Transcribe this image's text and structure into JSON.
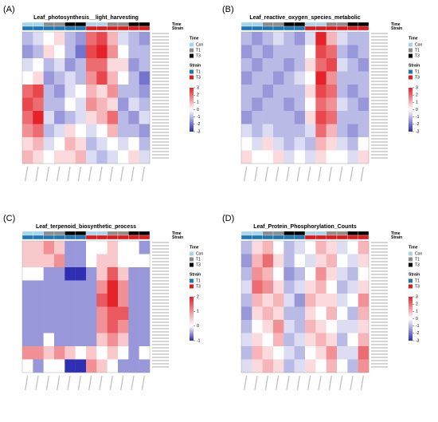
{
  "chart_data": [
    {
      "type": "heatmap",
      "label": "(A)",
      "title": "Leaf_photosynthesis__light_harvesting",
      "annotation_labels": [
        "Time",
        "Strain"
      ],
      "time_legend": {
        "title": "Time",
        "items": [
          "Con",
          "T1",
          "T3"
        ],
        "colors": [
          "#a6d4ec",
          "#8c8c8c",
          "#000000"
        ]
      },
      "strain_legend": {
        "title": "Strain",
        "items": [
          "T1",
          "T3"
        ],
        "colors": [
          "#1f78b4",
          "#e31a1c"
        ]
      },
      "columns": {
        "time": [
          "Con",
          "Con",
          "T1",
          "T1",
          "T3",
          "T3",
          "Con",
          "Con",
          "T1",
          "T1",
          "T3",
          "T3"
        ],
        "strain": [
          "T1",
          "T1",
          "T1",
          "T1",
          "T1",
          "T1",
          "T3",
          "T3",
          "T3",
          "T3",
          "T3",
          "T3"
        ]
      },
      "zlim": [
        -3,
        3
      ],
      "zticks": [
        3,
        2,
        1,
        0,
        -1,
        -2,
        -3
      ],
      "colors": [
        "#2f2fb4",
        "#ffffff",
        "#e3222a"
      ],
      "values": [
        [
          -1,
          -0.5,
          0,
          0.5,
          -1,
          -1.5,
          2,
          2.5,
          1,
          -0.5,
          -1,
          -1.5
        ],
        [
          -1.5,
          -1,
          0.5,
          0,
          -1,
          -2,
          2.5,
          3,
          1.5,
          0,
          -1,
          -1
        ],
        [
          -0.5,
          0,
          -1,
          -0.5,
          -1.5,
          -1,
          2,
          2,
          0.5,
          0.5,
          -1.5,
          -1
        ],
        [
          0,
          0.5,
          -1.5,
          -1,
          -0.5,
          -1,
          1.5,
          2.5,
          1,
          0,
          -1,
          -2
        ],
        [
          2,
          2.5,
          -1,
          -1.5,
          -0.5,
          0,
          1,
          0.5,
          1.5,
          -1,
          -1,
          -1.5
        ],
        [
          2.5,
          2,
          -1,
          -1,
          0,
          -0.5,
          1.5,
          1,
          0.5,
          -1.5,
          -0.5,
          -1
        ],
        [
          2,
          3,
          -0.5,
          -1.5,
          -1,
          -0.5,
          0.5,
          1,
          2,
          -1,
          -1.5,
          -0.5
        ],
        [
          1.5,
          2,
          -1,
          -0.5,
          0.5,
          0,
          -0.5,
          0,
          1,
          -1,
          -1,
          -1.5
        ],
        [
          0.5,
          1,
          -0.5,
          0,
          1,
          0.5,
          -1,
          -0.5,
          0,
          -0.5,
          0,
          -1
        ],
        [
          1,
          0.5,
          0,
          0.5,
          0.5,
          1,
          -0.5,
          -1,
          -0.5,
          0,
          0.5,
          -0.5
        ]
      ]
    },
    {
      "type": "heatmap",
      "label": "(B)",
      "title": "Leaf_reactive_oxygen_species_metabolic",
      "annotation_labels": [
        "Time",
        "Strain"
      ],
      "time_legend": {
        "title": "Time",
        "items": [
          "Con",
          "T1",
          "T3"
        ],
        "colors": [
          "#a6d4ec",
          "#8c8c8c",
          "#000000"
        ]
      },
      "strain_legend": {
        "title": "Strain",
        "items": [
          "T1",
          "T3"
        ],
        "colors": [
          "#1f78b4",
          "#e31a1c"
        ]
      },
      "columns": {
        "time": [
          "Con",
          "Con",
          "T1",
          "T1",
          "T3",
          "T3",
          "Con",
          "Con",
          "T1",
          "T1",
          "T3",
          "T3"
        ],
        "strain": [
          "T1",
          "T1",
          "T1",
          "T1",
          "T1",
          "T1",
          "T3",
          "T3",
          "T3",
          "T3",
          "T3",
          "T3"
        ]
      },
      "zlim": [
        -3,
        3
      ],
      "zticks": [
        3,
        2,
        1,
        0,
        -1,
        -2,
        -3
      ],
      "colors": [
        "#2f2fb4",
        "#ffffff",
        "#e3222a"
      ],
      "values": [
        [
          -1,
          -1.5,
          -1,
          -0.5,
          -1,
          -1.5,
          -0.5,
          3,
          1,
          -0.5,
          -1,
          -1
        ],
        [
          -1.5,
          -1,
          -1.5,
          -1,
          -1,
          -1,
          0,
          2.5,
          2,
          -1,
          -1.5,
          -1
        ],
        [
          -1,
          -1.5,
          -1,
          -1,
          -1.5,
          -1,
          0.5,
          2,
          2.5,
          -0.5,
          -1,
          -1.5
        ],
        [
          -1.5,
          -1,
          -1,
          -1.5,
          -1,
          -0.5,
          0,
          3,
          1.5,
          -1,
          -1,
          -1
        ],
        [
          -1,
          -1,
          -1.5,
          -1,
          -1,
          -1,
          0.5,
          2.5,
          2,
          -1,
          -1.5,
          -1
        ],
        [
          -1,
          -1.5,
          -1,
          -1,
          -1.5,
          -1,
          0,
          2,
          1.5,
          -0.5,
          -1,
          -1.5
        ],
        [
          -1.5,
          -1,
          -1,
          -1,
          -1,
          -1.5,
          0.5,
          2.5,
          2,
          -1,
          -1,
          -1
        ],
        [
          -0.5,
          -1,
          -0.5,
          -1,
          -1,
          -1,
          -0.5,
          2,
          1,
          -1,
          -1.5,
          -1
        ],
        [
          0,
          -0.5,
          0.5,
          -0.5,
          -1,
          -0.5,
          -1,
          1,
          0.5,
          -0.5,
          -1,
          0
        ],
        [
          0.5,
          0,
          0,
          0.5,
          -0.5,
          0,
          -0.5,
          0.5,
          0,
          0,
          -0.5,
          0.5
        ]
      ]
    },
    {
      "type": "heatmap",
      "label": "(C)",
      "title": "Leaf_terpenoid_biosynthetic_process",
      "annotation_labels": [
        "Time",
        "Strain"
      ],
      "time_legend": {
        "title": "Time",
        "items": [
          "Con",
          "T1",
          "T3"
        ],
        "colors": [
          "#a6d4ec",
          "#8c8c8c",
          "#000000"
        ]
      },
      "strain_legend": {
        "title": "Strain",
        "items": [
          "T1",
          "T3"
        ],
        "colors": [
          "#1f78b4",
          "#e31a1c"
        ]
      },
      "columns": {
        "time": [
          "Con",
          "Con",
          "T1",
          "T1",
          "T3",
          "T3",
          "Con",
          "Con",
          "T1",
          "T1",
          "T3",
          "T3"
        ],
        "strain": [
          "T1",
          "T1",
          "T1",
          "T1",
          "T1",
          "T1",
          "T3",
          "T3",
          "T3",
          "T3",
          "T3",
          "T3"
        ]
      },
      "zlim": [
        -1,
        2
      ],
      "zticks": [
        2,
        1,
        0,
        -1
      ],
      "colors": [
        "#2f2fb4",
        "#ffffff",
        "#e3222a"
      ],
      "values": [
        [
          0.5,
          0.5,
          1,
          0.5,
          -0.5,
          -0.5,
          0,
          0,
          0.5,
          0,
          0,
          -0.5
        ],
        [
          0.5,
          0.5,
          0.5,
          1,
          -0.5,
          -0.5,
          0,
          0.5,
          0.5,
          0,
          0,
          0
        ],
        [
          0,
          0,
          -0.5,
          -0.5,
          -1,
          -1,
          -0.5,
          0.5,
          1.5,
          0.5,
          -0.5,
          -0.5
        ],
        [
          -0.5,
          -0.5,
          -0.5,
          -0.5,
          -0.5,
          -0.5,
          -0.5,
          1,
          2,
          1,
          -0.5,
          -0.5
        ],
        [
          -0.5,
          -0.5,
          -0.5,
          -0.5,
          -0.5,
          -0.5,
          -0.5,
          1.5,
          2,
          1,
          -0.5,
          -0.5
        ],
        [
          -0.5,
          -0.5,
          -0.5,
          -0.5,
          -0.5,
          -0.5,
          -0.5,
          1,
          1.5,
          1.5,
          -0.5,
          -0.5
        ],
        [
          -0.5,
          -0.5,
          -0.5,
          -0.5,
          -0.5,
          -0.5,
          -0.5,
          1,
          1.5,
          1,
          -0.5,
          -0.5
        ],
        [
          -0.5,
          -0.5,
          0,
          -0.5,
          -0.5,
          -0.5,
          -0.5,
          0.5,
          1,
          0.5,
          -0.5,
          -0.5
        ],
        [
          1,
          1,
          0.5,
          1,
          0.5,
          0,
          0.5,
          0,
          0.5,
          0,
          -0.5,
          0
        ],
        [
          0,
          -0.5,
          0,
          0,
          -1,
          -1,
          1,
          0.5,
          0,
          -0.5,
          -0.5,
          -0.5
        ]
      ]
    },
    {
      "type": "heatmap",
      "label": "(D)",
      "title": "Leaf_Protein_Phosphorylation_Counts",
      "annotation_labels": [
        "Time",
        "Strain"
      ],
      "time_legend": {
        "title": "Time",
        "items": [
          "Con",
          "T1",
          "T3"
        ],
        "colors": [
          "#a6d4ec",
          "#8c8c8c",
          "#000000"
        ]
      },
      "strain_legend": {
        "title": "Strain",
        "items": [
          "T1",
          "T3"
        ],
        "colors": [
          "#1f78b4",
          "#e31a1c"
        ]
      },
      "columns": {
        "time": [
          "Con",
          "Con",
          "T1",
          "T1",
          "T3",
          "T3",
          "Con",
          "Con",
          "T1",
          "T1",
          "T3",
          "T3"
        ],
        "strain": [
          "T1",
          "T1",
          "T1",
          "T1",
          "T1",
          "T1",
          "T3",
          "T3",
          "T3",
          "T3",
          "T3",
          "T3"
        ]
      },
      "zlim": [
        -3,
        3
      ],
      "zticks": [
        3,
        2,
        1,
        0,
        -1,
        -2,
        -3
      ],
      "colors": [
        "#2f2fb4",
        "#ffffff",
        "#e3222a"
      ],
      "values": [
        [
          -1,
          0.5,
          1,
          0,
          -1,
          -0.5,
          0,
          1,
          0.5,
          -0.5,
          0,
          1
        ],
        [
          -1.5,
          1,
          2,
          0.5,
          -1,
          0,
          -0.5,
          0.5,
          1,
          0,
          -0.5,
          0.5
        ],
        [
          -1,
          1.5,
          1,
          0,
          -1.5,
          -1,
          0,
          1.5,
          0.5,
          -0.5,
          -1,
          0
        ],
        [
          -0.5,
          2,
          1.5,
          0.5,
          -1,
          -0.5,
          0.5,
          1,
          0,
          -1,
          -0.5,
          0.5
        ],
        [
          -1,
          1,
          0.5,
          1,
          -0.5,
          -1.5,
          1,
          0.5,
          0.5,
          -0.5,
          0,
          1.5
        ],
        [
          -1.5,
          0.5,
          1,
          0.5,
          -1,
          -1,
          0.5,
          0,
          1,
          0,
          -1,
          1
        ],
        [
          -1,
          0,
          0.5,
          1.5,
          -0.5,
          -1,
          1,
          0.5,
          0,
          -0.5,
          -0.5,
          0.5
        ],
        [
          -0.5,
          0.5,
          0,
          1,
          -1,
          -0.5,
          0.5,
          1,
          0.5,
          -1,
          0,
          1
        ],
        [
          -1,
          1,
          0.5,
          0,
          -0.5,
          -1,
          0,
          0.5,
          1.5,
          -0.5,
          -0.5,
          2
        ],
        [
          -0.5,
          0.5,
          1,
          0.5,
          -1,
          -0.5,
          0.5,
          0,
          1,
          0,
          -1,
          1.5
        ]
      ]
    }
  ]
}
